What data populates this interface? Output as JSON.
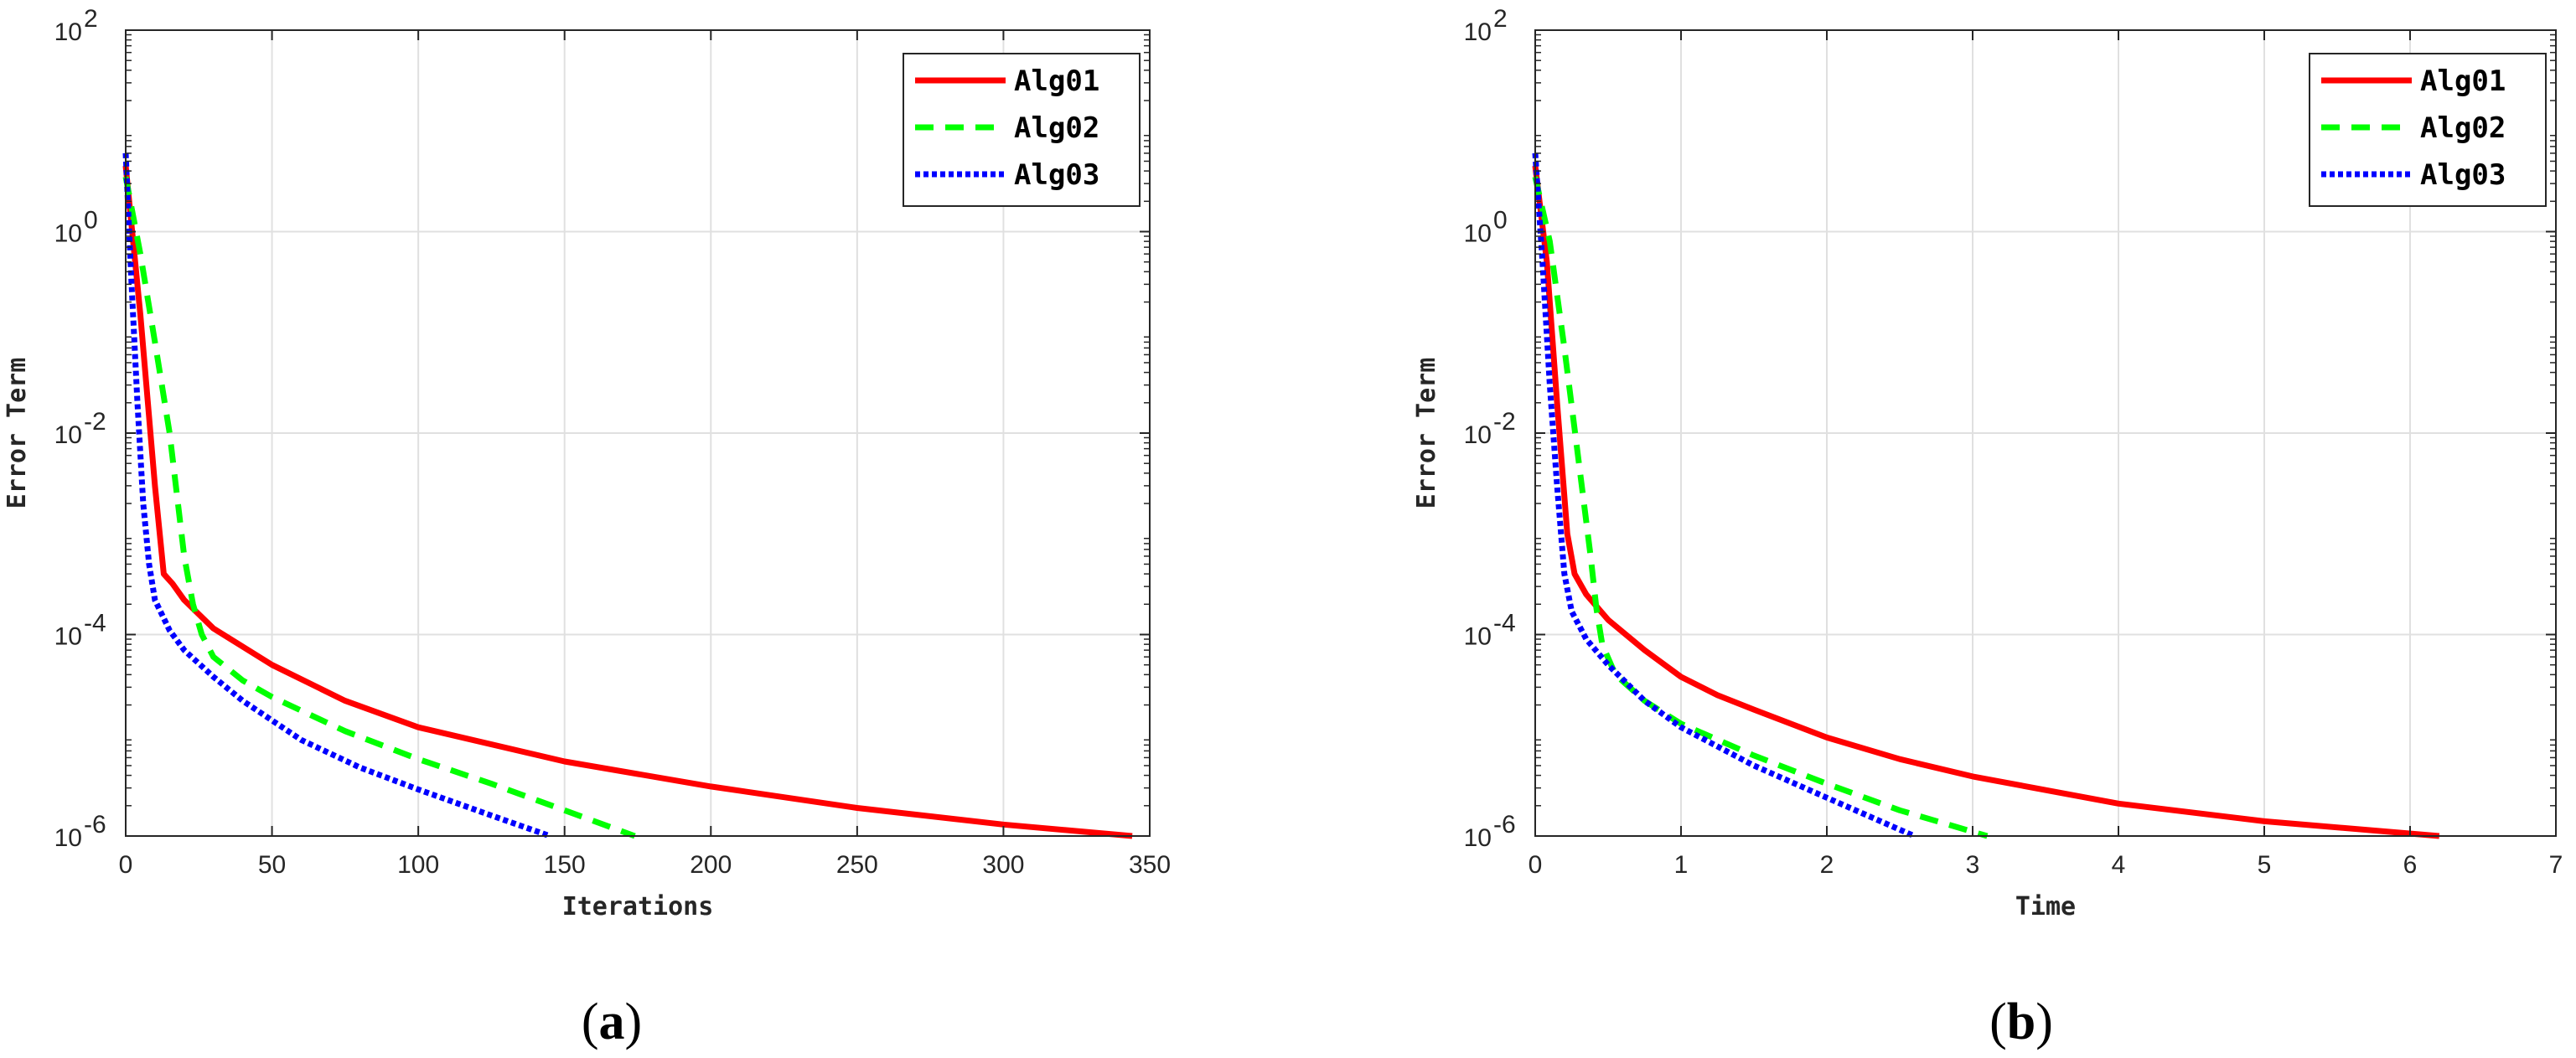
{
  "chart_data": [
    {
      "type": "line",
      "panel_label": "(a)",
      "xlabel": "Iterations",
      "ylabel": "Error Term",
      "xlim": [
        0,
        350
      ],
      "ylim": [
        1e-06,
        100
      ],
      "yscale": "log",
      "grid": true,
      "legend_position": "top-right",
      "x_ticks": [
        "0",
        "50",
        "100",
        "150",
        "200",
        "250",
        "300",
        "350"
      ],
      "y_ticks": [
        {
          "base": "10",
          "exp": "-6"
        },
        {
          "base": "10",
          "exp": "-4"
        },
        {
          "base": "10",
          "exp": "-2"
        },
        {
          "base": "10",
          "exp": "0"
        },
        {
          "base": "10",
          "exp": "2"
        }
      ],
      "series": [
        {
          "name": "Alg01",
          "color": "#ff0000",
          "style": "solid",
          "x": [
            0,
            5,
            10,
            13,
            16,
            20,
            30,
            50,
            75,
            100,
            150,
            200,
            250,
            300,
            344
          ],
          "y": [
            4.5,
            0.15,
            0.003,
            0.0004,
            0.00032,
            0.00022,
            0.000115,
            5e-05,
            2.2e-05,
            1.2e-05,
            5.5e-06,
            3.1e-06,
            1.9e-06,
            1.3e-06,
            1e-06
          ]
        },
        {
          "name": "Alg02",
          "color": "#00ff00",
          "style": "dashed",
          "x": [
            0,
            5,
            10,
            15,
            20,
            23,
            26,
            30,
            40,
            50,
            75,
            100,
            125,
            150,
            174
          ],
          "y": [
            3.5,
            0.6,
            0.08,
            0.01,
            0.0006,
            0.0002,
            0.0001,
            6e-05,
            3.5e-05,
            2.4e-05,
            1.1e-05,
            5.8e-06,
            3.3e-06,
            1.8e-06,
            1e-06
          ]
        },
        {
          "name": "Alg03",
          "color": "#0000ff",
          "style": "dotted",
          "x": [
            0,
            2,
            4,
            6,
            8,
            10,
            15,
            20,
            30,
            40,
            60,
            80,
            100,
            125,
            145
          ],
          "y": [
            6,
            0.3,
            0.02,
            0.002,
            0.0005,
            0.00022,
            0.00011,
            7e-05,
            3.8e-05,
            2.2e-05,
            9e-06,
            4.8e-06,
            2.9e-06,
            1.6e-06,
            1e-06
          ]
        }
      ]
    },
    {
      "type": "line",
      "panel_label": "(b)",
      "xlabel": "Time",
      "ylabel": "Error Term",
      "xlim": [
        0,
        7
      ],
      "ylim": [
        1e-06,
        100
      ],
      "yscale": "log",
      "grid": true,
      "legend_position": "top-right",
      "x_ticks": [
        "0",
        "1",
        "2",
        "3",
        "4",
        "5",
        "6",
        "7"
      ],
      "y_ticks": [
        {
          "base": "10",
          "exp": "-6"
        },
        {
          "base": "10",
          "exp": "-4"
        },
        {
          "base": "10",
          "exp": "-2"
        },
        {
          "base": "10",
          "exp": "0"
        },
        {
          "base": "10",
          "exp": "2"
        }
      ],
      "series": [
        {
          "name": "Alg01",
          "color": "#ff0000",
          "style": "solid",
          "x": [
            0,
            0.08,
            0.15,
            0.22,
            0.27,
            0.35,
            0.5,
            0.75,
            1.0,
            1.25,
            1.5,
            2.0,
            2.5,
            3.0,
            4.0,
            5.0,
            6.2
          ],
          "y": [
            4.5,
            0.5,
            0.02,
            0.001,
            0.0004,
            0.00025,
            0.00014,
            7e-05,
            3.8e-05,
            2.5e-05,
            1.8e-05,
            9.5e-06,
            5.8e-06,
            3.9e-06,
            2.1e-06,
            1.4e-06,
            1e-06
          ]
        },
        {
          "name": "Alg02",
          "color": "#00ff00",
          "style": "dashed",
          "x": [
            0,
            0.1,
            0.2,
            0.3,
            0.38,
            0.42,
            0.46,
            0.55,
            0.75,
            1.0,
            1.5,
            2.0,
            2.5,
            3.1
          ],
          "y": [
            3.5,
            0.8,
            0.07,
            0.005,
            0.0006,
            0.00018,
            8e-05,
            4e-05,
            2.2e-05,
            1.3e-05,
            6.3e-06,
            3.3e-06,
            1.8e-06,
            1e-06
          ]
        },
        {
          "name": "Alg03",
          "color": "#0000ff",
          "style": "dotted",
          "x": [
            0,
            0.05,
            0.1,
            0.15,
            0.2,
            0.25,
            0.35,
            0.5,
            0.75,
            1.0,
            1.5,
            2.0,
            2.6
          ],
          "y": [
            6,
            0.5,
            0.03,
            0.003,
            0.0004,
            0.00017,
            9e-05,
            5e-05,
            2.2e-05,
            1.2e-05,
            5e-06,
            2.4e-06,
            1e-06
          ]
        }
      ]
    }
  ]
}
